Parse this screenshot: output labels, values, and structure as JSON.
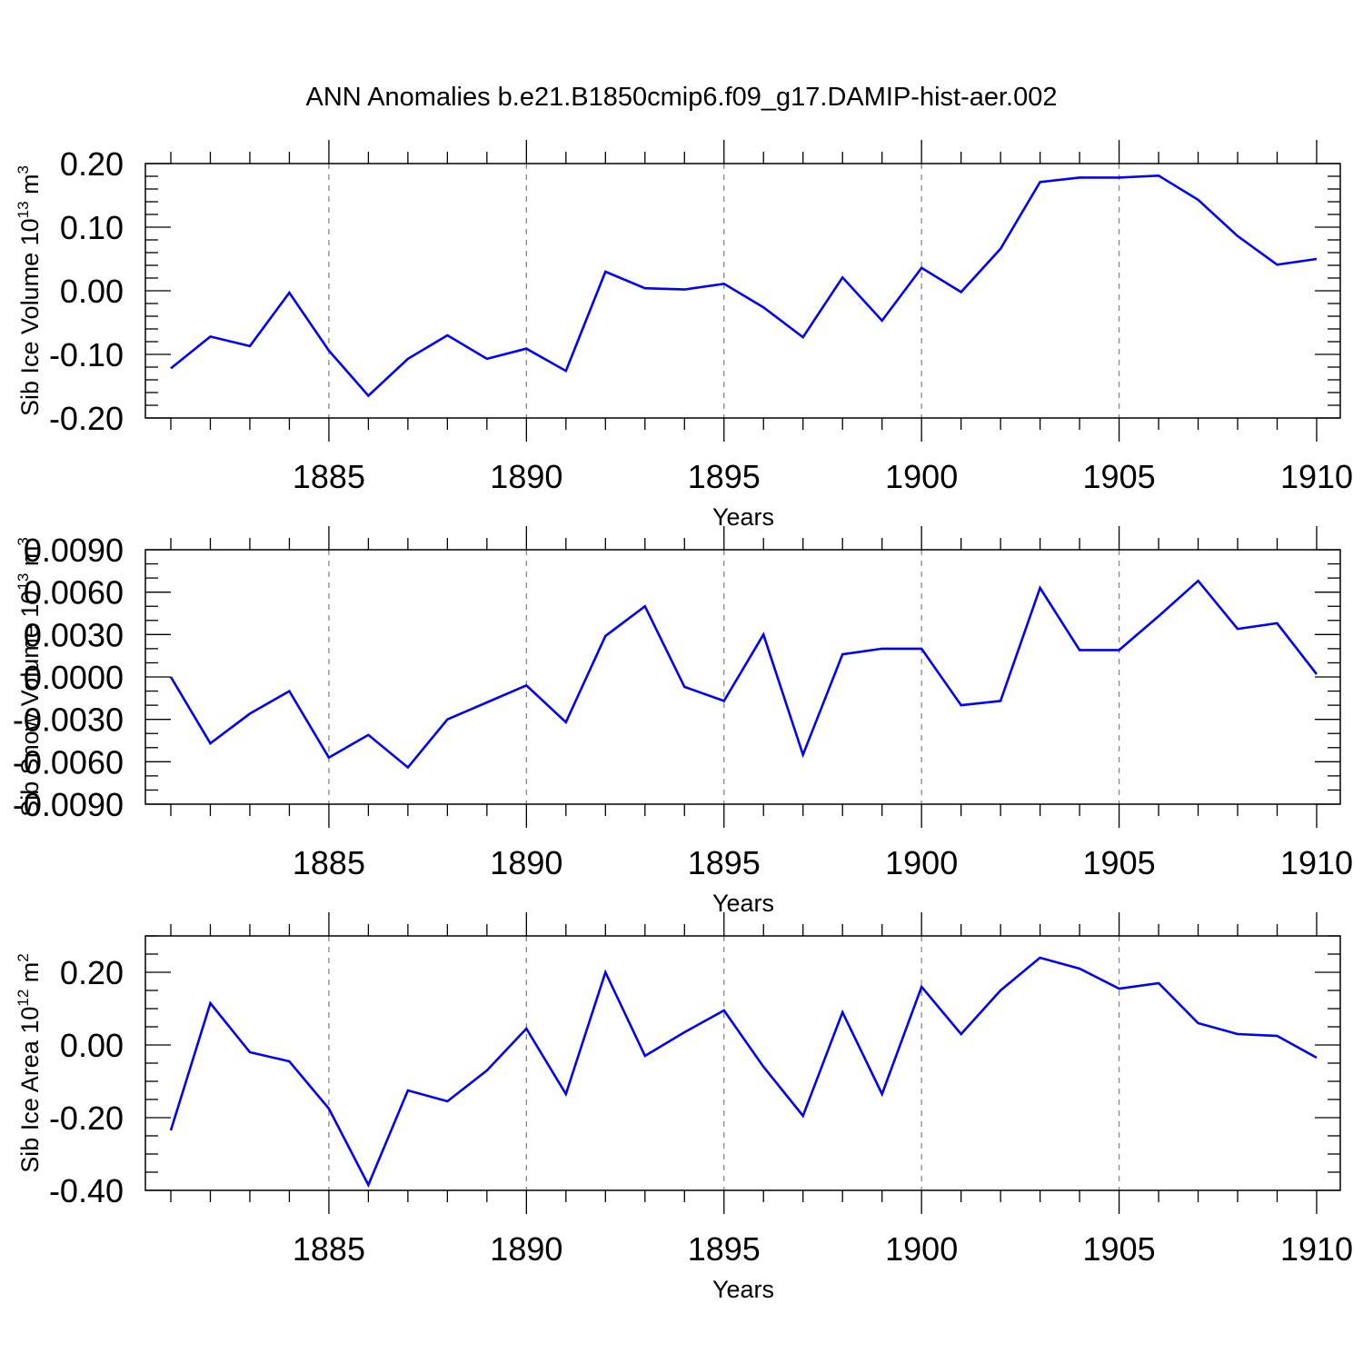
{
  "title": "ANN Anomalies b.e21.B1850cmip6.f09_g17.DAMIP-hist-aer.002",
  "chart_data": [
    {
      "type": "line",
      "name": "sib-ice-volume",
      "title": "ANN Anomalies b.e21.B1850cmip6.f09_g17.DAMIP-hist-aer.002",
      "xlabel": "Years",
      "ylabel_main": "Sib Ice Volume 10",
      "ylabel_sup": "13",
      "ylabel_unit": " m",
      "ylabel_unit_sup": "3",
      "xlim": [
        1881,
        1910
      ],
      "ylim": [
        -0.2,
        0.2
      ],
      "xticks": [
        1885,
        1890,
        1895,
        1900,
        1905,
        1910
      ],
      "xtick_labels": [
        "1885",
        "1890",
        "1895",
        "1900",
        "1905",
        "1910"
      ],
      "yticks": [
        -0.2,
        -0.1,
        0.0,
        0.1,
        0.2
      ],
      "ytick_labels": [
        "-0.20",
        "-0.10",
        "0.00",
        "0.10",
        "0.20"
      ],
      "y_minor_step": 0.02,
      "grid": "vertical dashed at major x ticks",
      "color": "#0000ff",
      "x": [
        1881,
        1882,
        1883,
        1884,
        1885,
        1886,
        1887,
        1888,
        1889,
        1890,
        1891,
        1892,
        1893,
        1894,
        1895,
        1896,
        1897,
        1898,
        1899,
        1900,
        1901,
        1902,
        1903,
        1904,
        1905,
        1906,
        1907,
        1908,
        1909,
        1910
      ],
      "values": [
        -0.122,
        -0.072,
        -0.087,
        -0.003,
        -0.094,
        -0.165,
        -0.107,
        -0.07,
        -0.107,
        -0.091,
        -0.126,
        0.03,
        0.004,
        0.002,
        0.011,
        -0.026,
        -0.073,
        0.021,
        -0.047,
        0.036,
        -0.002,
        0.066,
        0.171,
        0.178,
        0.178,
        0.181,
        0.143,
        0.086,
        0.041,
        0.05
      ]
    },
    {
      "type": "line",
      "name": "sib-snow-volume",
      "xlabel": "Years",
      "ylabel_main": "Sib Snow Volume 10",
      "ylabel_sup": "13",
      "ylabel_unit": " m",
      "ylabel_unit_sup": "3",
      "xlim": [
        1881,
        1910
      ],
      "ylim": [
        -0.009,
        0.009
      ],
      "xticks": [
        1885,
        1890,
        1895,
        1900,
        1905,
        1910
      ],
      "xtick_labels": [
        "1885",
        "1890",
        "1895",
        "1900",
        "1905",
        "1910"
      ],
      "yticks": [
        -0.009,
        -0.006,
        -0.003,
        0.0,
        0.003,
        0.006,
        0.009
      ],
      "ytick_labels": [
        "-0.0090",
        "-0.0060",
        "-0.0030",
        "0.0000",
        "0.0030",
        "0.0060",
        "0.0090"
      ],
      "y_minor_step": 0.001,
      "grid": "vertical dashed at major x ticks",
      "color": "#0000ff",
      "x": [
        1881,
        1882,
        1883,
        1884,
        1885,
        1886,
        1887,
        1888,
        1889,
        1890,
        1891,
        1892,
        1893,
        1894,
        1895,
        1896,
        1897,
        1898,
        1899,
        1900,
        1901,
        1902,
        1903,
        1904,
        1905,
        1906,
        1907,
        1908,
        1909,
        1910
      ],
      "values": [
        0.0,
        -0.0047,
        -0.0026,
        -0.001,
        -0.0057,
        -0.0041,
        -0.0064,
        -0.003,
        -0.0018,
        -0.0006,
        -0.0032,
        0.0029,
        0.005,
        -0.0007,
        -0.0017,
        0.003,
        -0.0055,
        0.0016,
        0.002,
        0.002,
        -0.002,
        -0.0017,
        0.0063,
        0.0019,
        0.0019,
        0.0043,
        0.0068,
        0.0034,
        0.0038,
        0.0002
      ]
    },
    {
      "type": "line",
      "name": "sib-ice-area",
      "xlabel": "Years",
      "ylabel_main": "Sib Ice Area 10",
      "ylabel_sup": "12",
      "ylabel_unit": " m",
      "ylabel_unit_sup": "2",
      "xlim": [
        1881,
        1910
      ],
      "ylim": [
        -0.4,
        0.3
      ],
      "xticks": [
        1885,
        1890,
        1895,
        1900,
        1905,
        1910
      ],
      "xtick_labels": [
        "1885",
        "1890",
        "1895",
        "1900",
        "1905",
        "1910"
      ],
      "yticks": [
        -0.4,
        -0.2,
        0.0,
        0.2
      ],
      "ytick_labels": [
        "-0.40",
        "-0.20",
        "0.00",
        "0.20"
      ],
      "y_minor_step": 0.05,
      "grid": "vertical dashed at major x ticks",
      "color": "#0000ff",
      "x": [
        1881,
        1882,
        1883,
        1884,
        1885,
        1886,
        1887,
        1888,
        1889,
        1890,
        1891,
        1892,
        1893,
        1894,
        1895,
        1896,
        1897,
        1898,
        1899,
        1900,
        1901,
        1902,
        1903,
        1904,
        1905,
        1906,
        1907,
        1908,
        1909,
        1910
      ],
      "values": [
        -0.235,
        0.115,
        -0.02,
        -0.045,
        -0.175,
        -0.385,
        -0.125,
        -0.155,
        -0.07,
        0.045,
        -0.135,
        0.2,
        -0.03,
        0.035,
        0.095,
        -0.06,
        -0.195,
        0.09,
        -0.135,
        0.16,
        0.03,
        0.15,
        0.24,
        0.21,
        0.155,
        0.17,
        0.06,
        0.03,
        0.025,
        -0.035
      ]
    }
  ]
}
